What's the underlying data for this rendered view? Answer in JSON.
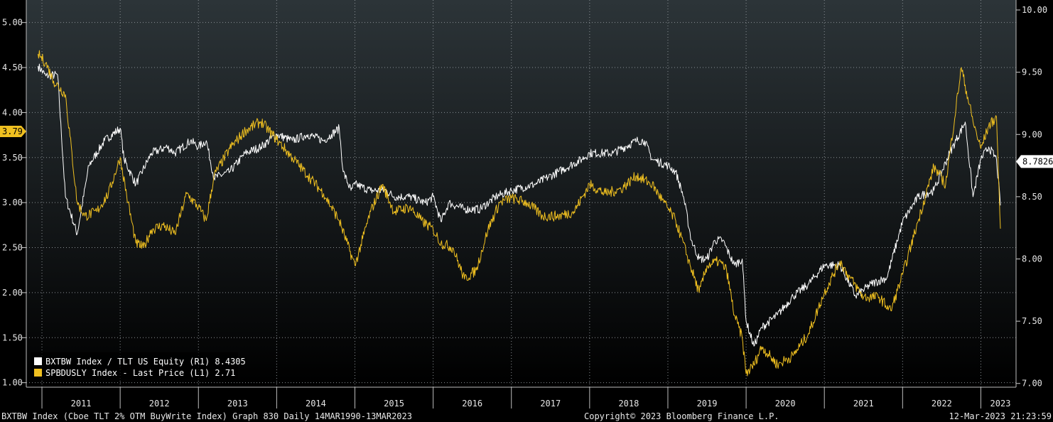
{
  "chart_data": {
    "type": "line",
    "left_axis": {
      "ticks": [
        "1.00",
        "1.50",
        "2.00",
        "2.50",
        "3.00",
        "3.50",
        "4.00",
        "4.50",
        "5.00"
      ],
      "ylim": [
        0.95,
        5.25
      ]
    },
    "right_axis": {
      "ticks": [
        "7.00",
        "7.50",
        "8.00",
        "8.50",
        "9.00",
        "9.50",
        "10.00"
      ],
      "ylim": [
        6.97,
        10.08
      ]
    },
    "x_labels": [
      "2011",
      "2012",
      "2013",
      "2014",
      "2015",
      "2016",
      "2017",
      "2018",
      "2019",
      "2020",
      "2021",
      "2022",
      "2023"
    ],
    "grid": true,
    "legend_position": "bottom-left",
    "series": [
      {
        "name": "BXTBW Index / TLT US Equity (R1)",
        "last_value": "8.4305",
        "axis": "right",
        "color": "#ffffff",
        "points": [
          [
            2010.95,
            9.55
          ],
          [
            2011.05,
            9.47
          ],
          [
            2011.2,
            9.48
          ],
          [
            2011.3,
            8.5
          ],
          [
            2011.45,
            8.2
          ],
          [
            2011.6,
            8.75
          ],
          [
            2011.8,
            8.95
          ],
          [
            2012.0,
            9.05
          ],
          [
            2012.05,
            8.8
          ],
          [
            2012.2,
            8.6
          ],
          [
            2012.4,
            8.85
          ],
          [
            2012.6,
            8.9
          ],
          [
            2012.7,
            8.85
          ],
          [
            2012.9,
            8.95
          ],
          [
            2013.0,
            8.9
          ],
          [
            2013.1,
            8.95
          ],
          [
            2013.2,
            8.65
          ],
          [
            2013.4,
            8.7
          ],
          [
            2013.6,
            8.85
          ],
          [
            2013.8,
            8.9
          ],
          [
            2014.0,
            9.0
          ],
          [
            2014.2,
            8.95
          ],
          [
            2014.4,
            9.0
          ],
          [
            2014.6,
            8.95
          ],
          [
            2014.7,
            9.0
          ],
          [
            2014.8,
            9.05
          ],
          [
            2014.85,
            8.7
          ],
          [
            2014.95,
            8.55
          ],
          [
            2015.0,
            8.6
          ],
          [
            2015.2,
            8.55
          ],
          [
            2015.4,
            8.55
          ],
          [
            2015.5,
            8.5
          ],
          [
            2015.7,
            8.5
          ],
          [
            2015.9,
            8.45
          ],
          [
            2016.0,
            8.5
          ],
          [
            2016.1,
            8.3
          ],
          [
            2016.2,
            8.45
          ],
          [
            2016.4,
            8.4
          ],
          [
            2016.6,
            8.4
          ],
          [
            2016.8,
            8.5
          ],
          [
            2017.0,
            8.55
          ],
          [
            2017.3,
            8.6
          ],
          [
            2017.6,
            8.7
          ],
          [
            2017.9,
            8.8
          ],
          [
            2018.0,
            8.85
          ],
          [
            2018.3,
            8.85
          ],
          [
            2018.6,
            8.95
          ],
          [
            2018.7,
            8.95
          ],
          [
            2018.8,
            8.8
          ],
          [
            2019.0,
            8.75
          ],
          [
            2019.1,
            8.7
          ],
          [
            2019.2,
            8.5
          ],
          [
            2019.3,
            8.15
          ],
          [
            2019.4,
            8.0
          ],
          [
            2019.5,
            8.0
          ],
          [
            2019.6,
            8.15
          ],
          [
            2019.7,
            8.15
          ],
          [
            2019.85,
            7.95
          ],
          [
            2019.95,
            8.0
          ],
          [
            2020.0,
            7.5
          ],
          [
            2020.1,
            7.3
          ],
          [
            2020.2,
            7.45
          ],
          [
            2020.4,
            7.55
          ],
          [
            2020.6,
            7.7
          ],
          [
            2020.8,
            7.8
          ],
          [
            2021.0,
            7.95
          ],
          [
            2021.2,
            7.95
          ],
          [
            2021.4,
            7.7
          ],
          [
            2021.6,
            7.8
          ],
          [
            2021.8,
            7.85
          ],
          [
            2022.0,
            8.3
          ],
          [
            2022.2,
            8.5
          ],
          [
            2022.4,
            8.55
          ],
          [
            2022.6,
            8.85
          ],
          [
            2022.8,
            9.1
          ],
          [
            2022.9,
            8.5
          ],
          [
            2023.0,
            8.8
          ],
          [
            2023.1,
            8.9
          ],
          [
            2023.2,
            8.8
          ],
          [
            2023.25,
            8.43
          ]
        ]
      },
      {
        "name": "SPBDUSLY Index - Last Price (L1)",
        "last_value": "2.71",
        "axis": "left",
        "color": "#f0c020",
        "points": [
          [
            2010.95,
            4.65
          ],
          [
            2011.05,
            4.55
          ],
          [
            2011.15,
            4.35
          ],
          [
            2011.3,
            4.2
          ],
          [
            2011.45,
            3.0
          ],
          [
            2011.55,
            2.85
          ],
          [
            2011.7,
            2.9
          ],
          [
            2011.85,
            3.1
          ],
          [
            2012.0,
            3.5
          ],
          [
            2012.1,
            3.0
          ],
          [
            2012.2,
            2.55
          ],
          [
            2012.3,
            2.5
          ],
          [
            2012.4,
            2.7
          ],
          [
            2012.55,
            2.75
          ],
          [
            2012.7,
            2.65
          ],
          [
            2012.85,
            3.1
          ],
          [
            2013.0,
            2.95
          ],
          [
            2013.1,
            2.8
          ],
          [
            2013.2,
            3.3
          ],
          [
            2013.4,
            3.6
          ],
          [
            2013.6,
            3.8
          ],
          [
            2013.8,
            3.9
          ],
          [
            2014.0,
            3.7
          ],
          [
            2014.2,
            3.5
          ],
          [
            2014.4,
            3.3
          ],
          [
            2014.6,
            3.1
          ],
          [
            2014.8,
            2.8
          ],
          [
            2015.0,
            2.3
          ],
          [
            2015.1,
            2.6
          ],
          [
            2015.2,
            2.9
          ],
          [
            2015.35,
            3.2
          ],
          [
            2015.5,
            2.9
          ],
          [
            2015.7,
            2.95
          ],
          [
            2015.85,
            2.8
          ],
          [
            2016.0,
            2.7
          ],
          [
            2016.1,
            2.55
          ],
          [
            2016.25,
            2.5
          ],
          [
            2016.4,
            2.15
          ],
          [
            2016.55,
            2.25
          ],
          [
            2016.7,
            2.7
          ],
          [
            2016.85,
            3.0
          ],
          [
            2017.0,
            3.05
          ],
          [
            2017.2,
            3.0
          ],
          [
            2017.4,
            2.85
          ],
          [
            2017.6,
            2.85
          ],
          [
            2017.8,
            2.9
          ],
          [
            2018.0,
            3.2
          ],
          [
            2018.2,
            3.1
          ],
          [
            2018.4,
            3.15
          ],
          [
            2018.6,
            3.3
          ],
          [
            2018.8,
            3.2
          ],
          [
            2018.95,
            3.0
          ],
          [
            2019.1,
            2.8
          ],
          [
            2019.25,
            2.4
          ],
          [
            2019.4,
            2.0
          ],
          [
            2019.5,
            2.3
          ],
          [
            2019.65,
            2.35
          ],
          [
            2019.75,
            2.25
          ],
          [
            2019.85,
            1.75
          ],
          [
            2019.95,
            1.5
          ],
          [
            2020.0,
            1.1
          ],
          [
            2020.1,
            1.2
          ],
          [
            2020.2,
            1.4
          ],
          [
            2020.4,
            1.2
          ],
          [
            2020.6,
            1.3
          ],
          [
            2020.8,
            1.55
          ],
          [
            2021.0,
            2.0
          ],
          [
            2021.2,
            2.35
          ],
          [
            2021.3,
            2.2
          ],
          [
            2021.5,
            1.95
          ],
          [
            2021.7,
            1.95
          ],
          [
            2021.85,
            1.8
          ],
          [
            2022.0,
            2.2
          ],
          [
            2022.2,
            2.8
          ],
          [
            2022.4,
            3.4
          ],
          [
            2022.55,
            3.2
          ],
          [
            2022.75,
            4.5
          ],
          [
            2022.9,
            3.9
          ],
          [
            2023.0,
            3.6
          ],
          [
            2023.1,
            3.85
          ],
          [
            2023.2,
            3.95
          ],
          [
            2023.25,
            2.71
          ]
        ]
      }
    ],
    "markers": {
      "left": {
        "value": "3.79",
        "color": "#f0c020"
      },
      "right": {
        "value": "8.7826",
        "color": "#ffffff"
      }
    }
  },
  "footer": {
    "description": "BXTBW Index (Cboe TLT 2% OTM BuyWrite Index) Graph 830  Daily 14MAR1990-13MAR2023",
    "copyright": "Copyright© 2023 Bloomberg Finance L.P.",
    "timestamp": "12-Mar-2023 21:23:59"
  }
}
